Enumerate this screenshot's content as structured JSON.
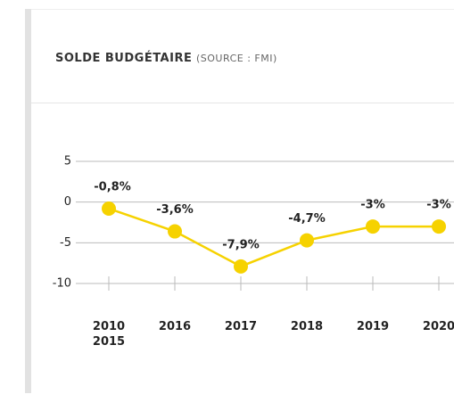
{
  "header": {
    "title": "SOLDE BUDGÉTAIRE",
    "source": "(SOURCE : FMI)"
  },
  "chart_data": {
    "type": "line",
    "categories": [
      "2010\n2015",
      "2016",
      "2017",
      "2018",
      "2019",
      "2020"
    ],
    "series": [
      {
        "name": "Solde budgétaire",
        "color": "#f6d200",
        "values": [
          -0.8,
          -3.6,
          -7.9,
          -4.7,
          -3,
          -3
        ],
        "value_labels": [
          "-0,8%",
          "-3,6%",
          "-7,9%",
          "-4,7%",
          "-3%",
          "-3%"
        ]
      }
    ],
    "ylim": [
      -10,
      5
    ],
    "yticks": [
      5,
      0,
      -5,
      -10
    ],
    "grid": true
  }
}
